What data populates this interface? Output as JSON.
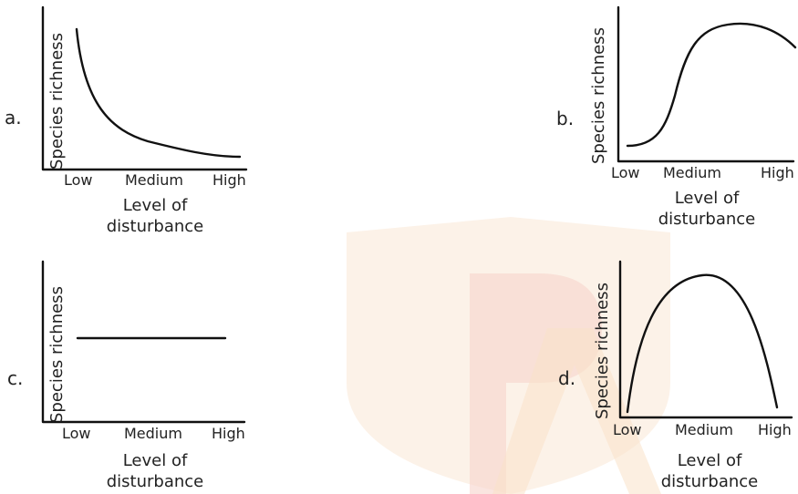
{
  "panels": [
    {
      "letter": "a.",
      "ylabel": "Species richness",
      "ticks": [
        "Low",
        "Medium",
        "High"
      ],
      "xlabel_line1": "Level of",
      "xlabel_line2": "disturbance",
      "trend": "decreasing"
    },
    {
      "letter": "b.",
      "ylabel": "Species richness",
      "ticks": [
        "Low",
        "Medium",
        "High"
      ],
      "xlabel_line1": "Level of",
      "xlabel_line2": "disturbance",
      "trend": "increasing-plateau"
    },
    {
      "letter": "c.",
      "ylabel": "Species richness",
      "ticks": [
        "Low",
        "Medium",
        "High"
      ],
      "xlabel_line1": "Level of",
      "xlabel_line2": "disturbance",
      "trend": "constant"
    },
    {
      "letter": "d.",
      "ylabel": "Species richness",
      "ticks": [
        "Low",
        "Medium",
        "High"
      ],
      "xlabel_line1": "Level of",
      "xlabel_line2": "disturbance",
      "trend": "hump-shaped"
    }
  ],
  "colors": {
    "ink": "#111111",
    "watermark_shield": "#fbeee0",
    "watermark_letter": "#f7d3cc"
  }
}
